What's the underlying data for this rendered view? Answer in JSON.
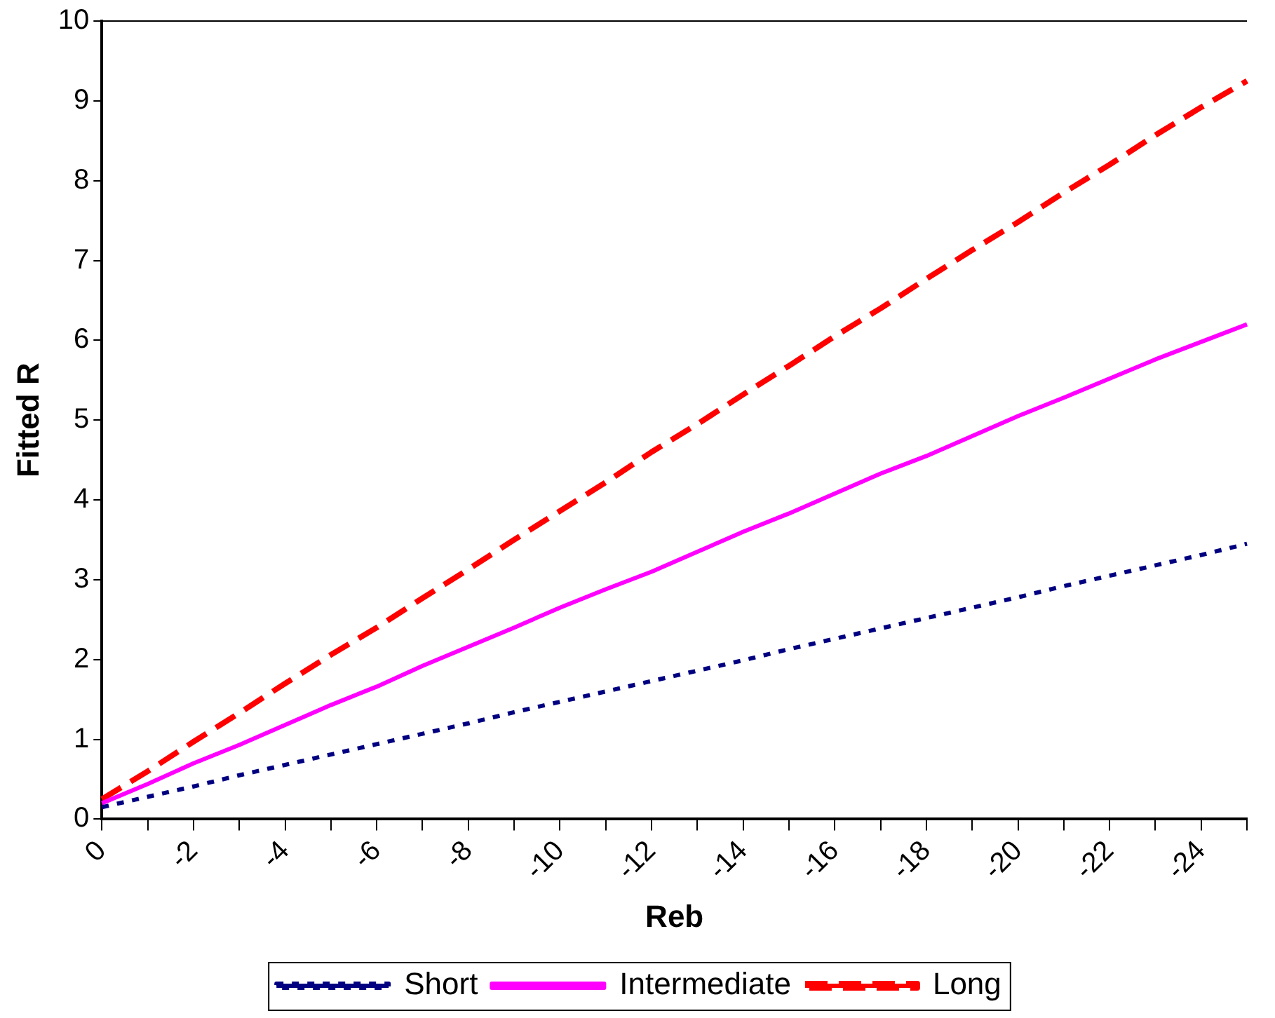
{
  "chart_data": {
    "type": "line",
    "xlabel": "Reb",
    "ylabel": "Fitted R",
    "categories": [
      "0",
      null,
      "-2",
      null,
      "-4",
      null,
      "-6",
      null,
      "-8",
      null,
      "-10",
      null,
      "-12",
      null,
      "-14",
      null,
      "-16",
      null,
      "-18",
      null,
      "-20",
      null,
      "-22",
      null,
      "-24",
      null
    ],
    "series": [
      {
        "name": "Short",
        "color": "#000080",
        "line_style": "dotted",
        "values": [
          0.15,
          0.28,
          0.41,
          0.55,
          0.68,
          0.81,
          0.94,
          1.07,
          1.2,
          1.34,
          1.47,
          1.6,
          1.73,
          1.86,
          1.99,
          2.13,
          2.26,
          2.39,
          2.52,
          2.65,
          2.78,
          2.92,
          3.05,
          3.18,
          3.31,
          3.45
        ]
      },
      {
        "name": "Intermediate",
        "color": "#ff00ff",
        "line_style": "solid",
        "values": [
          0.2,
          0.44,
          0.7,
          0.93,
          1.18,
          1.43,
          1.66,
          1.92,
          2.16,
          2.4,
          2.65,
          2.88,
          3.1,
          3.35,
          3.6,
          3.83,
          4.08,
          4.33,
          4.55,
          4.8,
          5.05,
          5.28,
          5.52,
          5.76,
          5.98,
          6.2
        ]
      },
      {
        "name": "Long",
        "color": "#ff0000",
        "line_style": "dashed",
        "values": [
          0.25,
          0.6,
          0.97,
          1.33,
          1.7,
          2.06,
          2.4,
          2.77,
          3.13,
          3.5,
          3.86,
          4.22,
          4.6,
          4.95,
          5.32,
          5.68,
          6.05,
          6.4,
          6.77,
          7.13,
          7.48,
          7.85,
          8.2,
          8.57,
          8.92,
          9.25
        ]
      }
    ],
    "ylim": [
      0,
      10
    ],
    "yticks": [
      0,
      1,
      2,
      3,
      4,
      5,
      6,
      7,
      8,
      9,
      10
    ],
    "grid": false,
    "legend": "bottom",
    "marker": "none"
  }
}
